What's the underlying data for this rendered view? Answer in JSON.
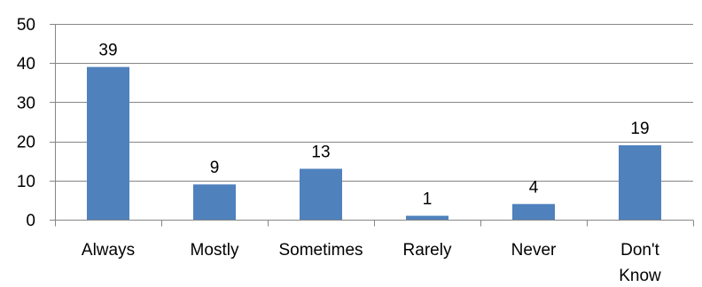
{
  "chart_data": {
    "type": "bar",
    "categories": [
      "Always",
      "Mostly",
      "Sometimes",
      "Rarely",
      "Never",
      "Don't Know"
    ],
    "category_lines": [
      [
        "Always"
      ],
      [
        "Mostly"
      ],
      [
        "Sometimes"
      ],
      [
        "Rarely"
      ],
      [
        "Never"
      ],
      [
        "Don't",
        "Know"
      ]
    ],
    "values": [
      39,
      9,
      13,
      1,
      4,
      19
    ],
    "title": "",
    "xlabel": "",
    "ylabel": "",
    "ylim": [
      0,
      50
    ],
    "yticks": [
      0,
      10,
      20,
      30,
      40,
      50
    ],
    "grid": true,
    "legend": "none",
    "colors": {
      "bar": "#4F81BD",
      "bar_edge": "#3A6BA5",
      "grid": "#868686",
      "axis": "#868686"
    }
  }
}
